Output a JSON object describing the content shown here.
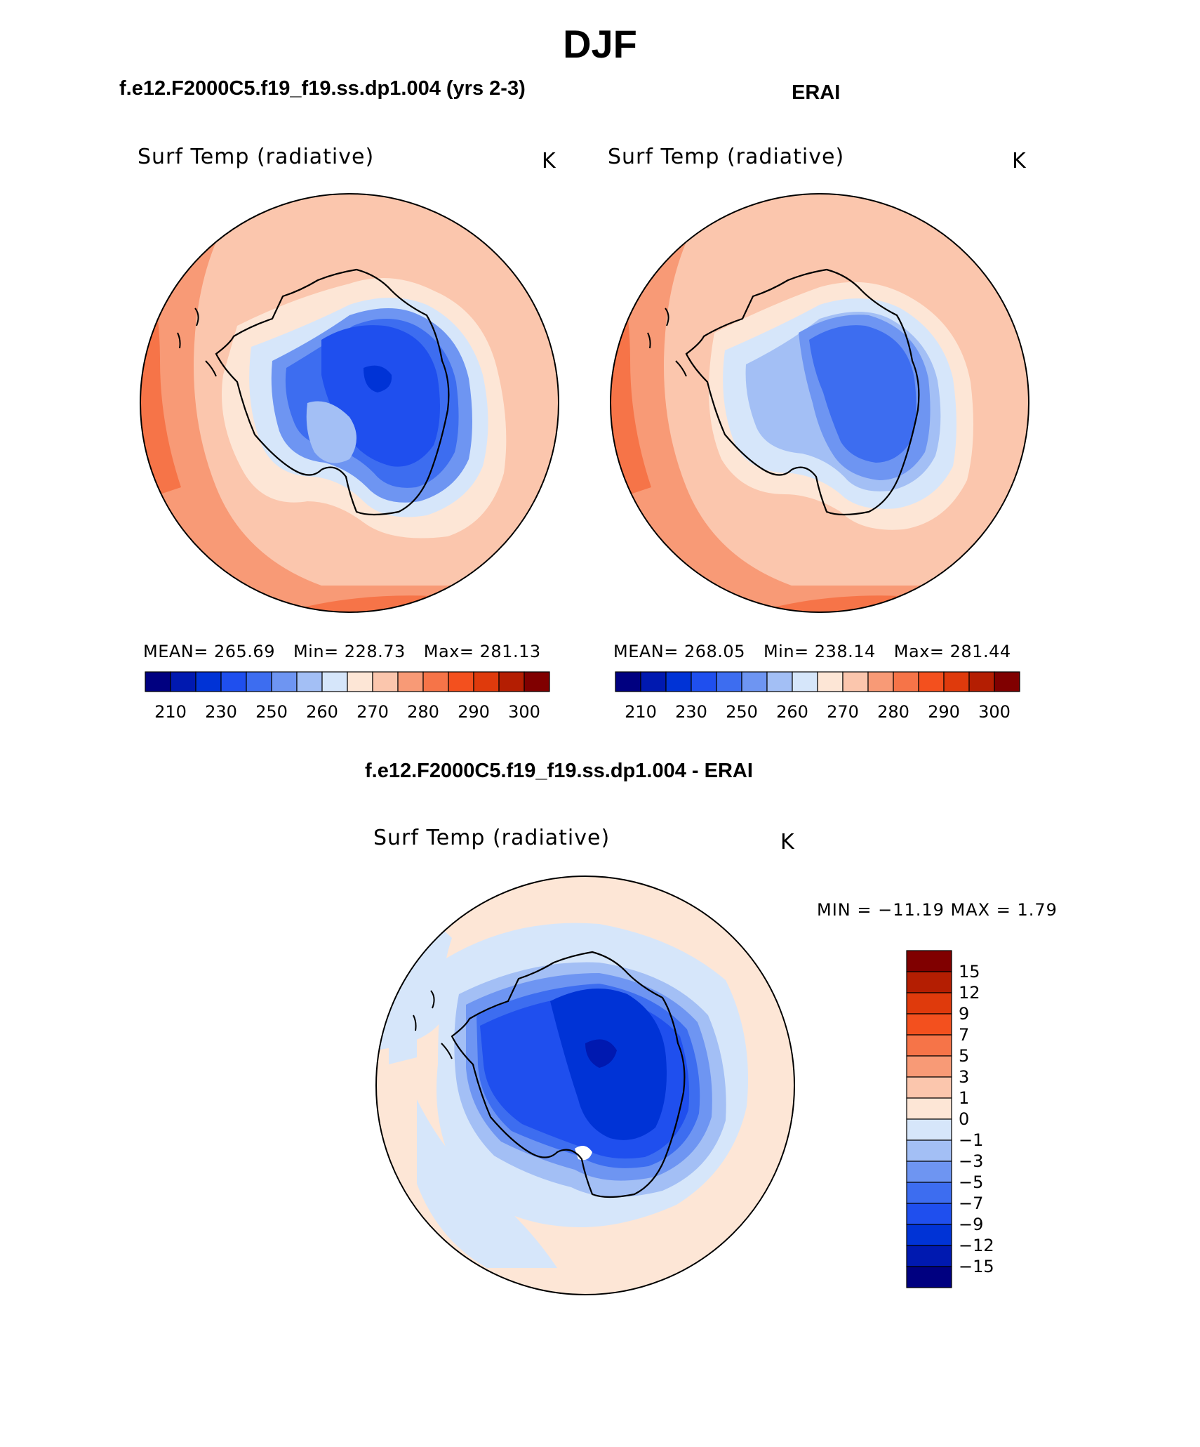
{
  "title": "DJF",
  "panels": [
    {
      "id": "model",
      "heading": "f.e12.F2000C5.f19_f19.ss.dp1.004 (yrs 2-3)",
      "variable": "Surf Temp (radiative)",
      "units": "K",
      "stats": {
        "mean": "MEAN= 265.69",
        "min": "Min= 228.73",
        "max": "Max= 281.13"
      }
    },
    {
      "id": "obs",
      "heading": "ERAI",
      "variable": "Surf Temp (radiative)",
      "units": "K",
      "stats": {
        "mean": "MEAN= 268.05",
        "min": "Min= 238.14",
        "max": "Max= 281.44"
      }
    },
    {
      "id": "diff",
      "heading": "f.e12.F2000C5.f19_f19.ss.dp1.004 - ERAI",
      "variable": "Surf Temp (radiative)",
      "units": "K",
      "minmax": "MIN = −11.19 MAX =    1.79"
    }
  ],
  "colorbar_abs": {
    "colors": [
      "#000080",
      "#0019b0",
      "#0033d6",
      "#1f4fee",
      "#3d6df0",
      "#6e95f2",
      "#a3bff5",
      "#d6e6fa",
      "#fde6d6",
      "#fbc6ad",
      "#f89a76",
      "#f67448",
      "#f3501e",
      "#df3a0c",
      "#b41e02",
      "#800000"
    ],
    "labels": [
      "210",
      "230",
      "250",
      "260",
      "270",
      "280",
      "290",
      "300"
    ]
  },
  "colorbar_diff": {
    "colors": [
      "#800000",
      "#b41e02",
      "#df3a0c",
      "#f3501e",
      "#f67448",
      "#f89a76",
      "#fbc6ad",
      "#fde6d6",
      "#d6e6fa",
      "#a3bff5",
      "#6e95f2",
      "#3d6df0",
      "#1f4fee",
      "#0033d6",
      "#0019b0",
      "#000080"
    ],
    "labels": [
      "15",
      "12",
      "9",
      "7",
      "5",
      "3",
      "1",
      "0",
      "−1",
      "−3",
      "−5",
      "−7",
      "−9",
      "−12",
      "−15"
    ]
  }
}
